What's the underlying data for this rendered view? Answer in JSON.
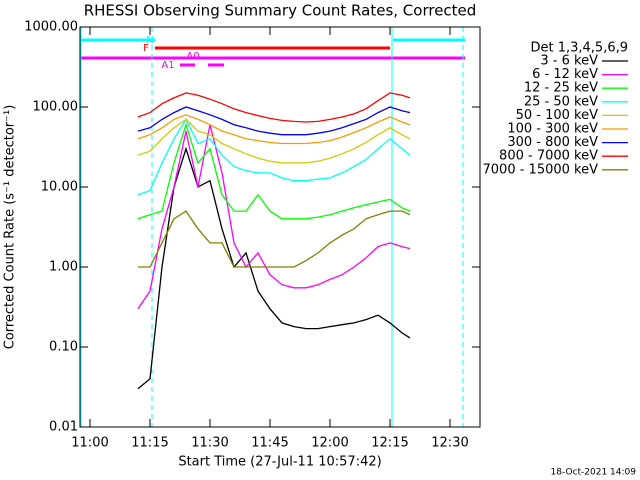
{
  "chart_data": {
    "type": "line",
    "title": "RHESSI Observing Summary Count Rates, Corrected",
    "xlabel": "Start Time (27-Jul-11 10:57:42)",
    "ylabel": "Corrected Count Rate (s⁻¹ detector⁻¹)",
    "footer": "18-Oct-2021 14:09",
    "legend_title": "Det 1,3,4,5,6,9",
    "annotations": [
      "N",
      "F",
      "A0",
      "A1"
    ],
    "yscale": "log",
    "ylim": [
      0.01,
      1000
    ],
    "yticks": [
      0.01,
      {
        "value": 0.1,
        "label": "0.10"
      },
      {
        "value": 1,
        "label": "1.00"
      },
      {
        "value": 10,
        "label": "10.00"
      },
      {
        "value": 100,
        "label": "100.00"
      },
      {
        "value": 1000,
        "label": "1000.00"
      }
    ],
    "xlim": [
      "10:57:30",
      "12:37:30"
    ],
    "xticks": [
      "11:00",
      "11:15",
      "11:30",
      "11:45",
      "12:00",
      "12:15",
      "12:30"
    ],
    "x": [
      "11:12",
      "11:15",
      "11:18",
      "11:21",
      "11:24",
      "11:27",
      "11:30",
      "11:33",
      "11:36",
      "11:39",
      "11:42",
      "11:45",
      "11:48",
      "11:51",
      "11:54",
      "11:57",
      "12:00",
      "12:03",
      "12:06",
      "12:09",
      "12:12",
      "12:15",
      "12:18",
      "12:20"
    ],
    "series": [
      {
        "name": "3 - 6 keV",
        "color": "#000000",
        "values": [
          0.03,
          0.04,
          1,
          10,
          30,
          10,
          12,
          3,
          1,
          1.5,
          0.5,
          0.3,
          0.2,
          0.18,
          0.17,
          0.17,
          0.18,
          0.19,
          0.2,
          0.22,
          0.25,
          0.2,
          0.15,
          0.13
        ]
      },
      {
        "name": "6 - 12 keV",
        "color": "#ff00ff",
        "values": [
          0.3,
          0.5,
          3,
          10,
          50,
          10,
          60,
          15,
          2,
          1,
          1.5,
          0.8,
          0.6,
          0.55,
          0.55,
          0.6,
          0.7,
          0.8,
          1,
          1.3,
          1.8,
          2,
          1.8,
          1.7
        ]
      },
      {
        "name": "12 - 25 keV",
        "color": "#00ff00",
        "values": [
          4,
          4.5,
          5,
          20,
          60,
          20,
          30,
          8,
          5,
          5,
          8,
          5,
          4,
          4,
          4,
          4.2,
          4.5,
          5,
          5.5,
          6,
          6.5,
          7,
          5.5,
          5
        ]
      },
      {
        "name": "25 - 50 keV",
        "color": "#00ffff",
        "values": [
          8,
          9,
          20,
          40,
          70,
          35,
          40,
          25,
          18,
          16,
          15,
          15,
          13,
          12,
          12,
          12.5,
          13,
          15,
          18,
          22,
          30,
          40,
          30,
          25
        ]
      },
      {
        "name": "50 - 100 keV",
        "color": "#cccc00",
        "values": [
          25,
          28,
          40,
          55,
          70,
          50,
          45,
          35,
          30,
          26,
          23,
          21,
          20,
          20,
          20,
          21,
          23,
          26,
          30,
          36,
          45,
          55,
          45,
          40
        ]
      },
      {
        "name": "100 - 300 keV",
        "color": "#ff9900",
        "values": [
          40,
          45,
          55,
          70,
          80,
          70,
          60,
          50,
          45,
          40,
          38,
          36,
          35,
          35,
          35,
          36,
          38,
          42,
          48,
          55,
          65,
          75,
          65,
          60
        ]
      },
      {
        "name": "300 - 800 keV",
        "color": "#0000ff",
        "values": [
          50,
          55,
          70,
          85,
          100,
          90,
          80,
          70,
          60,
          55,
          50,
          47,
          45,
          45,
          45,
          47,
          50,
          55,
          62,
          70,
          85,
          100,
          90,
          85
        ]
      },
      {
        "name": "800 - 7000 keV",
        "color": "#ff0000",
        "values": [
          75,
          85,
          110,
          130,
          150,
          140,
          125,
          110,
          95,
          85,
          78,
          72,
          68,
          66,
          65,
          66,
          70,
          75,
          82,
          95,
          120,
          150,
          140,
          130
        ]
      },
      {
        "name": "7000 - 15000 keV",
        "color": "#808000",
        "values": [
          1,
          1,
          2,
          4,
          5,
          3,
          2,
          2,
          1,
          1,
          1,
          1,
          1,
          1,
          1.2,
          1.5,
          2,
          2.5,
          3,
          4,
          4.5,
          5,
          5,
          4.5
        ]
      }
    ]
  }
}
